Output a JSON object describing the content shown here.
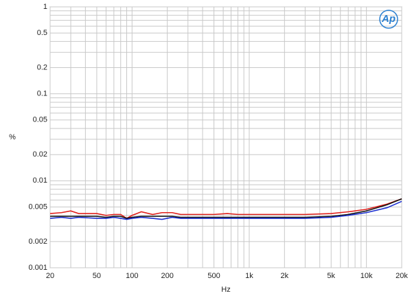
{
  "chart_data": {
    "type": "line",
    "logo": "Ap",
    "x_label": "Hz",
    "y_label": "%",
    "xscale": "log",
    "yscale": "log",
    "grid": true,
    "xlim": [
      20,
      20000
    ],
    "ylim": [
      0.001,
      1
    ],
    "xticks": [
      20,
      50,
      100,
      200,
      500,
      {
        "value": 1000,
        "label": "1k"
      },
      {
        "value": 2000,
        "label": "2k"
      },
      {
        "value": 5000,
        "label": "5k"
      },
      {
        "value": 10000,
        "label": "10k"
      },
      {
        "value": 20000,
        "label": "20k"
      }
    ],
    "yticks": [
      1,
      0.5,
      0.2,
      0.1,
      0.05,
      0.02,
      0.01,
      0.005,
      0.002,
      0.001
    ],
    "minor_xticks": [
      30,
      40,
      60,
      70,
      80,
      90,
      300,
      400,
      600,
      700,
      800,
      900,
      3000,
      4000,
      6000,
      7000,
      8000,
      9000
    ],
    "minor_yticks": [
      0.003,
      0.004,
      0.006,
      0.007,
      0.008,
      0.009,
      0.03,
      0.04,
      0.06,
      0.07,
      0.08,
      0.09,
      0.3,
      0.4,
      0.6,
      0.7,
      0.8,
      0.9
    ],
    "x": [
      20,
      25,
      30,
      35,
      50,
      60,
      70,
      80,
      90,
      100,
      120,
      150,
      180,
      220,
      260,
      350,
      500,
      650,
      800,
      1000,
      2000,
      3000,
      5000,
      7000,
      10000,
      15000,
      20000
    ],
    "series": [
      {
        "color": "#e0201b",
        "values": [
          0.0042,
          0.0043,
          0.0045,
          0.0042,
          0.0042,
          0.004,
          0.0041,
          0.0041,
          0.0037,
          0.004,
          0.0044,
          0.0041,
          0.0043,
          0.0043,
          0.0041,
          0.0041,
          0.0041,
          0.0042,
          0.0041,
          0.0041,
          0.0041,
          0.0041,
          0.0042,
          0.0044,
          0.0047,
          0.0054,
          0.0062
        ]
      },
      {
        "color": "#111111",
        "values": [
          0.0039,
          0.0039,
          0.0039,
          0.0039,
          0.0039,
          0.0038,
          0.0039,
          0.0039,
          0.0037,
          0.0038,
          0.0039,
          0.0039,
          0.0039,
          0.0039,
          0.0038,
          0.0038,
          0.0038,
          0.0038,
          0.0038,
          0.0038,
          0.0038,
          0.0038,
          0.0039,
          0.0041,
          0.0045,
          0.0053,
          0.0062
        ]
      },
      {
        "color": "#1c2fd0",
        "values": [
          0.0037,
          0.0038,
          0.0037,
          0.0038,
          0.0037,
          0.0037,
          0.0038,
          0.0037,
          0.0036,
          0.0037,
          0.0038,
          0.0037,
          0.0036,
          0.0038,
          0.0037,
          0.0037,
          0.0037,
          0.0037,
          0.0037,
          0.0037,
          0.0037,
          0.0037,
          0.0038,
          0.004,
          0.0043,
          0.0049,
          0.0058
        ]
      }
    ]
  }
}
